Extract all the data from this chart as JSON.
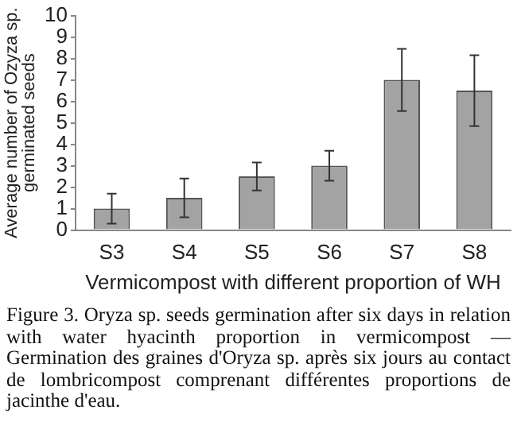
{
  "chart_data": {
    "type": "bar",
    "xlabel": "Vermicompost with different proportion of WH",
    "ylabel": "Average number of Ozyza sp.\ngerminated seeds",
    "categories": [
      "S3",
      "S4",
      "S5",
      "S6",
      "S7",
      "S8"
    ],
    "values": [
      1.0,
      1.5,
      2.5,
      3.0,
      7.0,
      6.5
    ],
    "errors": [
      0.7,
      0.9,
      0.65,
      0.7,
      1.45,
      1.65
    ],
    "color": "#a3a3a3",
    "ylim": [
      0,
      10
    ],
    "yticks": [
      0,
      1,
      2,
      3,
      4,
      5,
      6,
      7,
      8,
      9,
      10
    ],
    "grid": false,
    "legend": false,
    "annotations": [
      "Figure 3. Oryza sp. seeds germination after six days in relation with water hyacinth proportion in vermicompost — Germination des graines d'Oryza sp. après six jours au contact de lombricompost comprenant différentes proportions de jacinthe d'eau."
    ]
  }
}
